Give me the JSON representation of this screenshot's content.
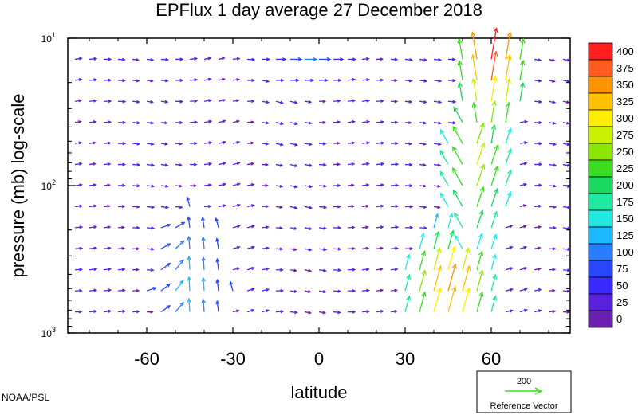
{
  "chart_data": {
    "type": "quiver",
    "title": "EPFlux  1 day average  27 December 2018",
    "xlabel": "latitude",
    "ylabel": "pressure (mb)  log-scale",
    "x_ticks": [
      -60,
      -30,
      0,
      30,
      60
    ],
    "xlim": [
      -87.5,
      87.5
    ],
    "y_scale": "log",
    "y_ticks": [
      {
        "value": 1000,
        "base": "10",
        "exp": "3"
      },
      {
        "value": 100,
        "base": "10",
        "exp": "2"
      },
      {
        "value": 10,
        "base": "10",
        "exp": "1"
      }
    ],
    "ylim": [
      1000,
      10
    ],
    "pressure_levels": [
      1000,
      925,
      850,
      700,
      600,
      500,
      400,
      300,
      250,
      200,
      150,
      100,
      70,
      50,
      30,
      20,
      10
    ],
    "colorbar": {
      "levels": [
        "400",
        "375",
        "350",
        "325",
        "300",
        "275",
        "250",
        "225",
        "200",
        "175",
        "150",
        "125",
        "100",
        "75",
        "50",
        "25",
        "0"
      ],
      "colors": [
        "#ff1f1f",
        "#ff5a1f",
        "#ff9400",
        "#ffc200",
        "#ffee00",
        "#c8f000",
        "#8ae800",
        "#3cdc22",
        "#19d95e",
        "#1fe8a0",
        "#22e8e0",
        "#1cb8ff",
        "#2a7cff",
        "#2946ff",
        "#3a2aff",
        "#5a22dd",
        "#6a1fb0"
      ]
    },
    "reference_vector": {
      "value": "200",
      "label": "Reference Vector"
    }
  },
  "credit": "NOAA/PSL"
}
